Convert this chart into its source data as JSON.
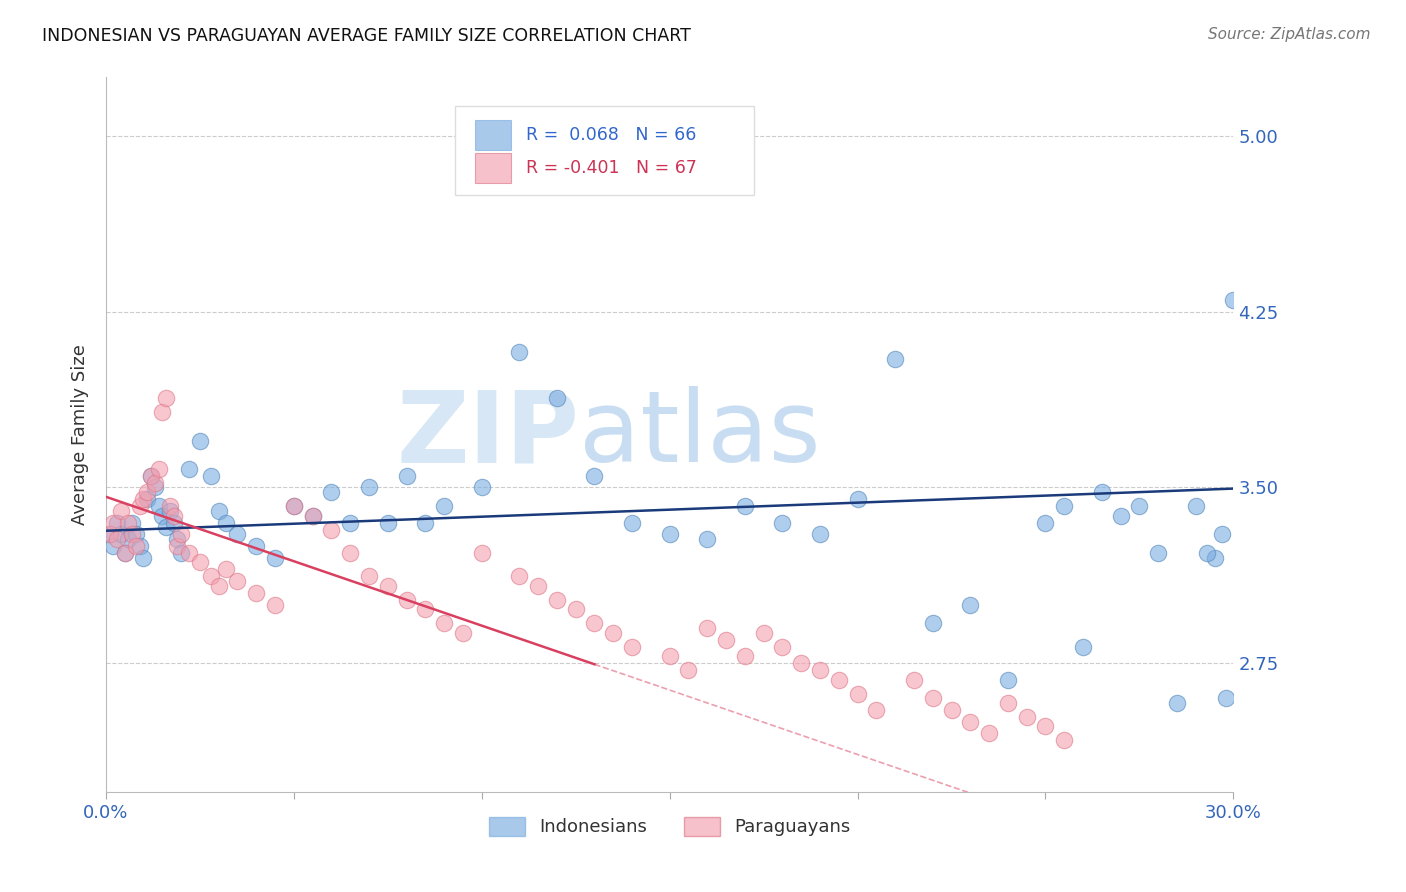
{
  "title": "INDONESIAN VS PARAGUAYAN AVERAGE FAMILY SIZE CORRELATION CHART",
  "source": "Source: ZipAtlas.com",
  "ylabel": "Average Family Size",
  "xlim": [
    0.0,
    0.3
  ],
  "ylim": [
    2.2,
    5.25
  ],
  "yticks": [
    2.75,
    3.5,
    4.25,
    5.0
  ],
  "xticks": [
    0.0,
    0.05,
    0.1,
    0.15,
    0.2,
    0.25,
    0.3
  ],
  "blue_color": "#7aace0",
  "pink_color": "#f4a0b0",
  "blue_line_color": "#1a3a7a",
  "pink_line_color": "#d94060",
  "watermark_text": "ZIPatlas",
  "indonesian_x": [
    0.001,
    0.002,
    0.003,
    0.004,
    0.005,
    0.006,
    0.007,
    0.008,
    0.009,
    0.01,
    0.011,
    0.012,
    0.013,
    0.014,
    0.015,
    0.016,
    0.017,
    0.018,
    0.019,
    0.02,
    0.022,
    0.025,
    0.028,
    0.03,
    0.032,
    0.035,
    0.04,
    0.045,
    0.05,
    0.055,
    0.06,
    0.065,
    0.07,
    0.075,
    0.08,
    0.085,
    0.09,
    0.1,
    0.11,
    0.12,
    0.13,
    0.14,
    0.15,
    0.16,
    0.17,
    0.18,
    0.19,
    0.2,
    0.21,
    0.22,
    0.23,
    0.24,
    0.25,
    0.255,
    0.26,
    0.265,
    0.27,
    0.275,
    0.28,
    0.285,
    0.29,
    0.295,
    0.298,
    0.3,
    0.297,
    0.293
  ],
  "indonesian_y": [
    3.3,
    3.25,
    3.35,
    3.3,
    3.22,
    3.28,
    3.35,
    3.3,
    3.25,
    3.2,
    3.45,
    3.55,
    3.5,
    3.42,
    3.38,
    3.33,
    3.4,
    3.35,
    3.28,
    3.22,
    3.58,
    3.7,
    3.55,
    3.4,
    3.35,
    3.3,
    3.25,
    3.2,
    3.42,
    3.38,
    3.48,
    3.35,
    3.5,
    3.35,
    3.55,
    3.35,
    3.42,
    3.5,
    4.08,
    3.88,
    3.55,
    3.35,
    3.3,
    3.28,
    3.42,
    3.35,
    3.3,
    3.45,
    4.05,
    2.92,
    3.0,
    2.68,
    3.35,
    3.42,
    2.82,
    3.48,
    3.38,
    3.42,
    3.22,
    2.58,
    3.42,
    3.2,
    2.6,
    4.3,
    3.3,
    3.22
  ],
  "paraguayan_x": [
    0.001,
    0.002,
    0.003,
    0.004,
    0.005,
    0.006,
    0.007,
    0.008,
    0.009,
    0.01,
    0.011,
    0.012,
    0.013,
    0.014,
    0.015,
    0.016,
    0.017,
    0.018,
    0.019,
    0.02,
    0.022,
    0.025,
    0.028,
    0.03,
    0.032,
    0.035,
    0.04,
    0.045,
    0.05,
    0.055,
    0.06,
    0.065,
    0.07,
    0.075,
    0.08,
    0.085,
    0.09,
    0.095,
    0.1,
    0.11,
    0.115,
    0.12,
    0.125,
    0.13,
    0.135,
    0.14,
    0.15,
    0.155,
    0.16,
    0.165,
    0.17,
    0.175,
    0.18,
    0.185,
    0.19,
    0.195,
    0.2,
    0.205,
    0.215,
    0.22,
    0.225,
    0.23,
    0.235,
    0.24,
    0.245,
    0.25,
    0.255
  ],
  "paraguayan_y": [
    3.3,
    3.35,
    3.28,
    3.4,
    3.22,
    3.35,
    3.3,
    3.25,
    3.42,
    3.45,
    3.48,
    3.55,
    3.52,
    3.58,
    3.82,
    3.88,
    3.42,
    3.38,
    3.25,
    3.3,
    3.22,
    3.18,
    3.12,
    3.08,
    3.15,
    3.1,
    3.05,
    3.0,
    3.42,
    3.38,
    3.32,
    3.22,
    3.12,
    3.08,
    3.02,
    2.98,
    2.92,
    2.88,
    3.22,
    3.12,
    3.08,
    3.02,
    2.98,
    2.92,
    2.88,
    2.82,
    2.78,
    2.72,
    2.9,
    2.85,
    2.78,
    2.88,
    2.82,
    2.75,
    2.72,
    2.68,
    2.62,
    2.55,
    2.68,
    2.6,
    2.55,
    2.5,
    2.45,
    2.58,
    2.52,
    2.48,
    2.42
  ]
}
